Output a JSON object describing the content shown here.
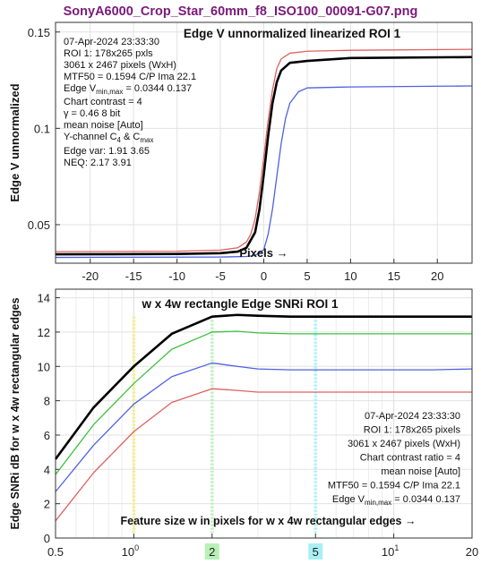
{
  "window_title": "SonyA6000_Crop_Star_60mm_f8_ISO100_00091-G07.png",
  "colors": {
    "black": "#000000",
    "red": "#e06060",
    "green": "#40c040",
    "blue": "#5060e0"
  },
  "chart_data": [
    {
      "type": "line",
      "title": "Edge V unnormalized linearized  ROI 1",
      "xlabel": "Pixels  →",
      "ylabel": "Edge V unnormalized",
      "xlim": [
        -24,
        24
      ],
      "ylim": [
        0.03,
        0.155
      ],
      "xticks": [
        -20,
        -15,
        -10,
        -5,
        0,
        5,
        10,
        15,
        20
      ],
      "yticks": [
        0.05,
        0.1,
        0.15
      ],
      "ytick_labels": [
        "0.05",
        "0.1",
        "0.15"
      ],
      "grid": true,
      "annotations": {
        "date": "07-Apr-2024 23:33:30",
        "roi": "ROI 1:  178x265 pxls",
        "size": "3061 x 2467 pixels (WxH)",
        "mtf50": "MTF50 = 0.1594 C/P  Ima 22.1",
        "edge_prefix": "Edge V",
        "edge_sub": "min,max",
        "edge_values": " = 0.0344 0.137",
        "contrast": "Chart contrast = 4",
        "gamma": "γ = 0.46   8 bit",
        "noise": "mean noise  [Auto]",
        "ychan_a": "Y-channel C",
        "ychan_sub1": "4",
        "ychan_b": " & C",
        "ychan_sub2": "max",
        "edge_var": "Edge var:  1.91  3.65",
        "neq": "NEQ:      2.17  3.91"
      },
      "series": [
        {
          "color": "#000000",
          "x": [
            -24,
            -10,
            -5,
            -3,
            -2,
            -1,
            -0.5,
            0,
            0.5,
            1,
            1.5,
            2,
            3,
            5,
            10,
            24
          ],
          "y": [
            0.0346,
            0.0348,
            0.0352,
            0.036,
            0.038,
            0.046,
            0.058,
            0.076,
            0.096,
            0.113,
            0.124,
            0.13,
            0.134,
            0.135,
            0.1365,
            0.137
          ]
        },
        {
          "color": "#e06060",
          "x": [
            -24,
            -10,
            -5,
            -3,
            -2,
            -1.5,
            -1,
            -0.5,
            0,
            0.5,
            1,
            1.5,
            2,
            3,
            5,
            10,
            24
          ],
          "y": [
            0.036,
            0.0362,
            0.0368,
            0.038,
            0.041,
            0.045,
            0.053,
            0.067,
            0.085,
            0.104,
            0.12,
            0.131,
            0.136,
            0.139,
            0.14,
            0.1405,
            0.141
          ]
        },
        {
          "color": "#5060e0",
          "x": [
            -24,
            -5,
            -2,
            -1,
            0,
            0.5,
            1,
            1.5,
            2,
            2.5,
            3,
            4,
            5,
            10,
            24
          ],
          "y": [
            0.033,
            0.0332,
            0.0335,
            0.034,
            0.037,
            0.045,
            0.058,
            0.075,
            0.092,
            0.105,
            0.113,
            0.119,
            0.121,
            0.1215,
            0.122
          ]
        }
      ]
    },
    {
      "type": "line",
      "title": "w x 4w rectangle Edge SNRi   ROI 1",
      "xlabel": "Feature size w in pixels for w x 4w rectangular edges  →",
      "ylabel": "Edge SNRi dB for w x 4w rectangular edges",
      "xscale": "log",
      "xlim": [
        0.5,
        20
      ],
      "ylim": [
        0,
        14.5
      ],
      "xticks": [
        0.5,
        1,
        2,
        5,
        10,
        20
      ],
      "xtick_labels": [
        "0.5",
        "10^0",
        "2",
        "5",
        "10^1",
        "20"
      ],
      "yticks": [
        0,
        2,
        4,
        6,
        8,
        10,
        12,
        14
      ],
      "grid": true,
      "markers": [
        {
          "x": 1,
          "color": "#f5f080",
          "label": ""
        },
        {
          "x": 2,
          "color": "#b8f0b8",
          "label": "2"
        },
        {
          "x": 5,
          "color": "#a8f0f5",
          "label": "5"
        }
      ],
      "annotations": {
        "date": "07-Apr-2024 23:33:30",
        "roi": "ROI 1:  178x265 pixels",
        "size": "3061 x 2467 pixels (WxH)",
        "contrast": "Chart contrast ratio = 4",
        "noise": "mean noise  [Auto]",
        "mtf50": "MTF50 = 0.1594 C/P  Ima 22.1",
        "edge_prefix": "Edge V",
        "edge_sub": "min,max",
        "edge_values": " = 0.0344 0.137"
      },
      "series": [
        {
          "color": "#000000",
          "x": [
            0.5,
            0.7,
            1,
            1.4,
            2,
            2.5,
            3,
            4,
            5,
            7,
            10,
            14,
            20
          ],
          "y": [
            4.6,
            7.6,
            10.0,
            11.9,
            12.9,
            13.0,
            12.95,
            12.9,
            12.9,
            12.9,
            12.9,
            12.9,
            12.9
          ]
        },
        {
          "color": "#40c040",
          "x": [
            0.5,
            0.7,
            1,
            1.4,
            2,
            2.5,
            3,
            4,
            5,
            7,
            10,
            14,
            20
          ],
          "y": [
            3.7,
            6.6,
            9.0,
            11.0,
            12.0,
            12.05,
            11.95,
            11.9,
            11.9,
            11.9,
            11.9,
            11.9,
            11.9
          ]
        },
        {
          "color": "#5060e0",
          "x": [
            0.5,
            0.7,
            1,
            1.4,
            2,
            2.5,
            3,
            4,
            5,
            7,
            10,
            14,
            20
          ],
          "y": [
            2.7,
            5.4,
            7.8,
            9.4,
            10.2,
            10.0,
            9.85,
            9.8,
            9.8,
            9.8,
            9.8,
            9.8,
            9.85
          ]
        },
        {
          "color": "#e06060",
          "x": [
            0.5,
            0.7,
            1,
            1.4,
            2,
            2.5,
            3,
            4,
            5,
            7,
            10,
            14,
            20
          ],
          "y": [
            1.0,
            3.8,
            6.2,
            7.9,
            8.7,
            8.6,
            8.5,
            8.5,
            8.5,
            8.5,
            8.5,
            8.5,
            8.5
          ]
        }
      ]
    }
  ]
}
